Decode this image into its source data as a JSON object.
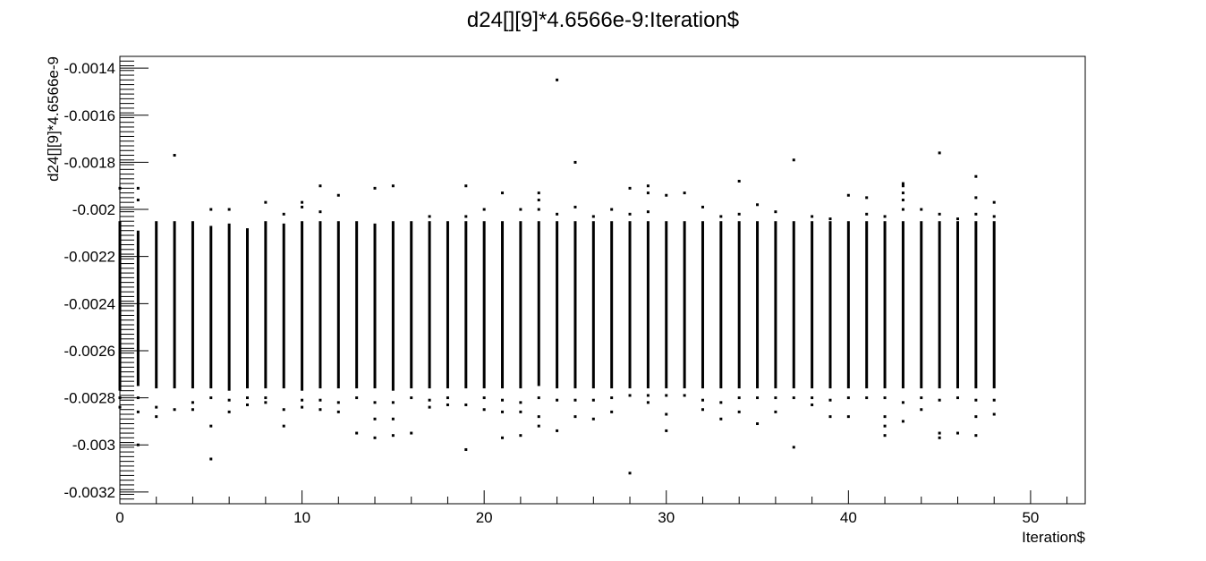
{
  "chart_data": {
    "type": "scatter",
    "title": "d24[][9]*4.6566e-9:Iteration$",
    "xlabel": "Iteration$",
    "ylabel": "d24[][9]*4.6566e-9",
    "xlim": [
      0,
      53
    ],
    "ylim": [
      -0.00325,
      -0.00135
    ],
    "x_ticks": [
      0,
      10,
      20,
      30,
      40,
      50
    ],
    "x_tick_labels": [
      "0",
      "10",
      "20",
      "30",
      "40",
      "50"
    ],
    "y_ticks": [
      -0.0014,
      -0.0016,
      -0.0018,
      -0.002,
      -0.0022,
      -0.0024,
      -0.0026,
      -0.0028,
      -0.003,
      -0.0032
    ],
    "y_tick_labels": [
      "-0.0014",
      "-0.0016",
      "-0.0018",
      "-0.002",
      "-0.0022",
      "-0.0024",
      "-0.0026",
      "-0.0028",
      "-0.003",
      "-0.0032"
    ],
    "grid": false,
    "legend": "none",
    "marker_color": "#000000",
    "columns": [
      {
        "x": 0,
        "band": [
          -0.00205,
          -0.00277
        ],
        "outliers": [
          -0.00191,
          -0.0028,
          -0.00284
        ]
      },
      {
        "x": 1,
        "band": [
          -0.00209,
          -0.00275
        ],
        "outliers": [
          -0.00191,
          -0.00196,
          -0.0028,
          -0.00286,
          -0.003
        ]
      },
      {
        "x": 2,
        "band": [
          -0.00205,
          -0.00276
        ],
        "outliers": [
          -0.00284,
          -0.00288
        ]
      },
      {
        "x": 3,
        "band": [
          -0.00205,
          -0.00276
        ],
        "outliers": [
          -0.00177,
          -0.00285
        ]
      },
      {
        "x": 4,
        "band": [
          -0.00205,
          -0.00276
        ],
        "outliers": [
          -0.00282,
          -0.00285
        ]
      },
      {
        "x": 5,
        "band": [
          -0.00207,
          -0.00276
        ],
        "outliers": [
          -0.002,
          -0.0028,
          -0.00292,
          -0.00306
        ]
      },
      {
        "x": 6,
        "band": [
          -0.00206,
          -0.00277
        ],
        "outliers": [
          -0.002,
          -0.00281,
          -0.00286
        ]
      },
      {
        "x": 7,
        "band": [
          -0.00208,
          -0.00276
        ],
        "outliers": [
          -0.0028,
          -0.00283
        ]
      },
      {
        "x": 8,
        "band": [
          -0.00205,
          -0.00276
        ],
        "outliers": [
          -0.00197,
          -0.0028,
          -0.00282
        ]
      },
      {
        "x": 9,
        "band": [
          -0.00206,
          -0.00276
        ],
        "outliers": [
          -0.00202,
          -0.00285,
          -0.00292
        ]
      },
      {
        "x": 10,
        "band": [
          -0.00205,
          -0.00277
        ],
        "outliers": [
          -0.00197,
          -0.00199,
          -0.00281,
          -0.00284
        ]
      },
      {
        "x": 11,
        "band": [
          -0.00205,
          -0.00276
        ],
        "outliers": [
          -0.0019,
          -0.00201,
          -0.00281,
          -0.00285
        ]
      },
      {
        "x": 12,
        "band": [
          -0.00205,
          -0.00276
        ],
        "outliers": [
          -0.00194,
          -0.00282,
          -0.00286
        ]
      },
      {
        "x": 13,
        "band": [
          -0.00205,
          -0.00276
        ],
        "outliers": [
          -0.0028,
          -0.00295
        ]
      },
      {
        "x": 14,
        "band": [
          -0.00206,
          -0.00276
        ],
        "outliers": [
          -0.00191,
          -0.00282,
          -0.00289,
          -0.00297
        ]
      },
      {
        "x": 15,
        "band": [
          -0.00205,
          -0.00277
        ],
        "outliers": [
          -0.0019,
          -0.00282,
          -0.00289,
          -0.00296
        ]
      },
      {
        "x": 16,
        "band": [
          -0.00205,
          -0.00276
        ],
        "outliers": [
          -0.0028,
          -0.00295
        ]
      },
      {
        "x": 17,
        "band": [
          -0.00205,
          -0.00276
        ],
        "outliers": [
          -0.00203,
          -0.00281,
          -0.00284
        ]
      },
      {
        "x": 18,
        "band": [
          -0.00205,
          -0.00276
        ],
        "outliers": [
          -0.0028,
          -0.00283
        ]
      },
      {
        "x": 19,
        "band": [
          -0.00205,
          -0.00276
        ],
        "outliers": [
          -0.0019,
          -0.00203,
          -0.00283,
          -0.00302
        ]
      },
      {
        "x": 20,
        "band": [
          -0.00205,
          -0.00276
        ],
        "outliers": [
          -0.002,
          -0.0028,
          -0.00285
        ]
      },
      {
        "x": 21,
        "band": [
          -0.00205,
          -0.00276
        ],
        "outliers": [
          -0.00193,
          -0.00281,
          -0.00286,
          -0.00297
        ]
      },
      {
        "x": 22,
        "band": [
          -0.00205,
          -0.00276
        ],
        "outliers": [
          -0.002,
          -0.00282,
          -0.00286,
          -0.00296
        ]
      },
      {
        "x": 23,
        "band": [
          -0.00205,
          -0.00275
        ],
        "outliers": [
          -0.00193,
          -0.00196,
          -0.002,
          -0.0028,
          -0.00288,
          -0.00292
        ]
      },
      {
        "x": 24,
        "band": [
          -0.00205,
          -0.00276
        ],
        "outliers": [
          -0.00145,
          -0.00202,
          -0.00281,
          -0.00294
        ]
      },
      {
        "x": 25,
        "band": [
          -0.00205,
          -0.00276
        ],
        "outliers": [
          -0.0018,
          -0.00199,
          -0.00281,
          -0.00288
        ]
      },
      {
        "x": 26,
        "band": [
          -0.00205,
          -0.00276
        ],
        "outliers": [
          -0.00203,
          -0.00281,
          -0.00289
        ]
      },
      {
        "x": 27,
        "band": [
          -0.00205,
          -0.00276
        ],
        "outliers": [
          -0.002,
          -0.0028,
          -0.00286
        ]
      },
      {
        "x": 28,
        "band": [
          -0.00205,
          -0.00276
        ],
        "outliers": [
          -0.00191,
          -0.00202,
          -0.00279,
          -0.00312
        ]
      },
      {
        "x": 29,
        "band": [
          -0.00205,
          -0.00276
        ],
        "outliers": [
          -0.0019,
          -0.00193,
          -0.00201,
          -0.00279,
          -0.00282
        ]
      },
      {
        "x": 30,
        "band": [
          -0.00205,
          -0.00276
        ],
        "outliers": [
          -0.00194,
          -0.00279,
          -0.00287,
          -0.00294
        ]
      },
      {
        "x": 31,
        "band": [
          -0.00205,
          -0.00276
        ],
        "outliers": [
          -0.00193,
          -0.00279
        ]
      },
      {
        "x": 32,
        "band": [
          -0.00205,
          -0.00276
        ],
        "outliers": [
          -0.00199,
          -0.00281,
          -0.00285
        ]
      },
      {
        "x": 33,
        "band": [
          -0.00205,
          -0.00276
        ],
        "outliers": [
          -0.00203,
          -0.00282,
          -0.00289
        ]
      },
      {
        "x": 34,
        "band": [
          -0.00205,
          -0.00276
        ],
        "outliers": [
          -0.00188,
          -0.00202,
          -0.0028,
          -0.00286
        ]
      },
      {
        "x": 35,
        "band": [
          -0.00205,
          -0.00276
        ],
        "outliers": [
          -0.00198,
          -0.0028,
          -0.00291
        ]
      },
      {
        "x": 36,
        "band": [
          -0.00205,
          -0.00276
        ],
        "outliers": [
          -0.00201,
          -0.0028,
          -0.00286
        ]
      },
      {
        "x": 37,
        "band": [
          -0.00205,
          -0.00276
        ],
        "outliers": [
          -0.00179,
          -0.0028,
          -0.00301
        ]
      },
      {
        "x": 38,
        "band": [
          -0.00205,
          -0.00276
        ],
        "outliers": [
          -0.00203,
          -0.0028,
          -0.00283
        ]
      },
      {
        "x": 39,
        "band": [
          -0.00205,
          -0.00276
        ],
        "outliers": [
          -0.00204,
          -0.00281,
          -0.00288
        ]
      },
      {
        "x": 40,
        "band": [
          -0.00205,
          -0.00276
        ],
        "outliers": [
          -0.00194,
          -0.0028,
          -0.00288
        ]
      },
      {
        "x": 41,
        "band": [
          -0.00205,
          -0.00276
        ],
        "outliers": [
          -0.00195,
          -0.00202,
          -0.0028
        ]
      },
      {
        "x": 42,
        "band": [
          -0.00205,
          -0.00276
        ],
        "outliers": [
          -0.00203,
          -0.0028,
          -0.00288,
          -0.00292,
          -0.00296
        ]
      },
      {
        "x": 43,
        "band": [
          -0.00205,
          -0.00276
        ],
        "outliers": [
          -0.0019,
          -0.00189,
          -0.00193,
          -0.00196,
          -0.002,
          -0.00282,
          -0.0029
        ]
      },
      {
        "x": 44,
        "band": [
          -0.00205,
          -0.00276
        ],
        "outliers": [
          -0.002,
          -0.0028,
          -0.00285
        ]
      },
      {
        "x": 45,
        "band": [
          -0.00205,
          -0.00276
        ],
        "outliers": [
          -0.00176,
          -0.00202,
          -0.00281,
          -0.00295,
          -0.00297
        ]
      },
      {
        "x": 46,
        "band": [
          -0.00205,
          -0.00276
        ],
        "outliers": [
          -0.00204,
          -0.0028,
          -0.00295
        ]
      },
      {
        "x": 47,
        "band": [
          -0.00205,
          -0.00276
        ],
        "outliers": [
          -0.00186,
          -0.00195,
          -0.00202,
          -0.00281,
          -0.00288,
          -0.00296
        ]
      },
      {
        "x": 48,
        "band": [
          -0.00205,
          -0.00276
        ],
        "outliers": [
          -0.00197,
          -0.00203,
          -0.00281,
          -0.00287
        ]
      }
    ]
  }
}
